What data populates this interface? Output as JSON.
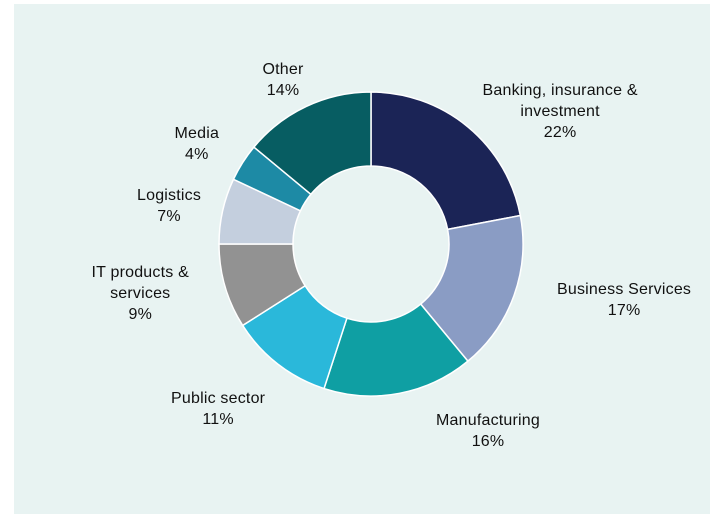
{
  "chart_data": {
    "type": "pie",
    "donut": true,
    "title": "",
    "slices": [
      {
        "label_lines": [
          "Banking, insurance &",
          "investment"
        ],
        "value_label": "22%",
        "value": 22,
        "color": "#1b2456"
      },
      {
        "label_lines": [
          "Business Services"
        ],
        "value_label": "17%",
        "value": 17,
        "color": "#8a9cc4"
      },
      {
        "label_lines": [
          "Manufacturing"
        ],
        "value_label": "16%",
        "value": 16,
        "color": "#0f9fa3"
      },
      {
        "label_lines": [
          "Public  sector"
        ],
        "value_label": "11%",
        "value": 11,
        "color": "#2ab8da"
      },
      {
        "label_lines": [
          "IT products &",
          "services"
        ],
        "value_label": "9%",
        "value": 9,
        "color": "#929292"
      },
      {
        "label_lines": [
          "Logistics"
        ],
        "value_label": "7%",
        "value": 7,
        "color": "#c4cfde"
      },
      {
        "label_lines": [
          "Media"
        ],
        "value_label": "4%",
        "value": 4,
        "color": "#1d8aa5"
      },
      {
        "label_lines": [
          "Other"
        ],
        "value_label": "14%",
        "value": 14,
        "color": "#075d62"
      }
    ],
    "background": "#e8f3f2"
  }
}
